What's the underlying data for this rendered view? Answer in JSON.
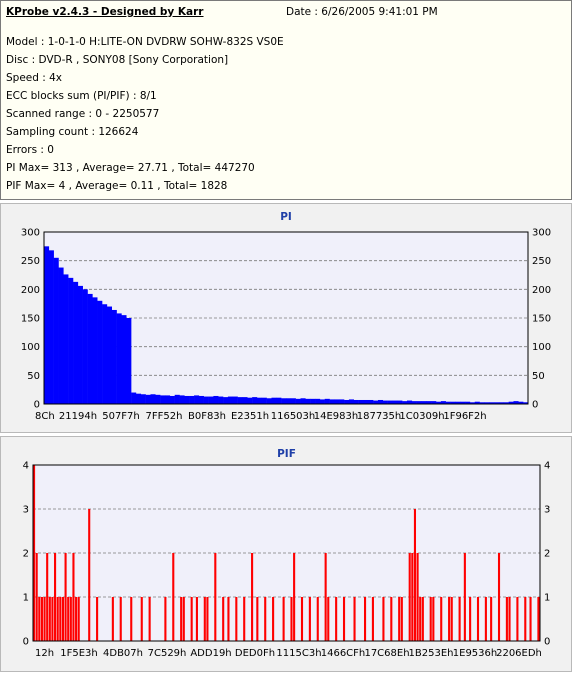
{
  "header": {
    "app_title": "KProbe v2.4.3 - Designed by Karr",
    "date": "Date : 6/26/2005 9:41:01 PM"
  },
  "info_lines": [
    "Model : 1-0-1-0 H:LITE-ON DVDRW SOHW-832S  VS0E",
    "Disc : DVD-R , SONY08 [Sony Corporation]",
    "Speed : 4x",
    "ECC blocks sum (PI/PIF) : 8/1",
    "Scanned range : 0 - 2250577",
    "Sampling count : 126624",
    "Errors : 0",
    "PI Max= 313 , Average= 27.71 , Total= 447270",
    "PIF Max= 4 , Average= 0.11 , Total= 1828"
  ],
  "colors": {
    "pi_series": "#0000ff",
    "pif_series": "#ff0000",
    "plot_background": "#f0f0fa",
    "grid": "#7a7a7a"
  },
  "chart_data": [
    {
      "type": "area",
      "title": "PI",
      "ylim": [
        0,
        300
      ],
      "y_ticks": [
        "0",
        "50",
        "100",
        "150",
        "200",
        "250",
        "300"
      ],
      "x_tick_labels": [
        "8Ch",
        "21194h",
        "507F7h",
        "7FF52h",
        "B0F83h",
        "E2351h",
        "116503h",
        "14E983h",
        "187735h",
        "1C0309h",
        "1F96F2h"
      ],
      "grid": "dashed horizontal",
      "series": [
        {
          "values": [
            275,
            268,
            255,
            238,
            226,
            220,
            213,
            206,
            200,
            192,
            186,
            180,
            174,
            170,
            164,
            158,
            155,
            150,
            20,
            18,
            17,
            16,
            17,
            16,
            15,
            15,
            14,
            16,
            15,
            14,
            14,
            15,
            14,
            13,
            13,
            14,
            13,
            12,
            13,
            13,
            12,
            12,
            11,
            12,
            11,
            11,
            10,
            11,
            11,
            10,
            10,
            10,
            9,
            10,
            9,
            9,
            9,
            8,
            9,
            8,
            8,
            8,
            7,
            8,
            7,
            7,
            7,
            7,
            6,
            7,
            6,
            6,
            6,
            6,
            5,
            6,
            5,
            5,
            5,
            5,
            5,
            4,
            5,
            4,
            4,
            4,
            4,
            4,
            3,
            4,
            3,
            3,
            3,
            3,
            3,
            3,
            4,
            5,
            4,
            3
          ]
        }
      ]
    },
    {
      "type": "bar",
      "title": "PIF",
      "ylim": [
        0,
        4
      ],
      "y_ticks": [
        "0",
        "1",
        "2",
        "3",
        "4"
      ],
      "x_tick_labels": [
        "12h",
        "1F5E3h",
        "4DB07h",
        "7C529h",
        "ADD19h",
        "DED0Fh",
        "1115C3h",
        "1466CFh",
        "17C68Eh",
        "1B253Eh",
        "1E9536h",
        "2206EDh"
      ],
      "grid": "dashed horizontal",
      "series": [
        {
          "values": [
            4,
            2,
            1,
            1,
            1,
            2,
            1,
            1,
            2,
            1,
            1,
            1,
            2,
            1,
            1,
            2,
            1,
            1,
            0,
            0,
            0,
            3,
            0,
            0,
            1,
            0,
            0,
            0,
            0,
            0,
            1,
            0,
            0,
            1,
            0,
            0,
            0,
            1,
            0,
            0,
            0,
            1,
            0,
            0,
            1,
            0,
            0,
            0,
            0,
            0,
            1,
            0,
            0,
            2,
            0,
            0,
            1,
            1,
            0,
            0,
            1,
            0,
            1,
            0,
            0,
            1,
            1,
            0,
            0,
            2,
            0,
            0,
            1,
            0,
            1,
            0,
            0,
            1,
            0,
            0,
            1,
            0,
            0,
            2,
            0,
            1,
            0,
            0,
            1,
            0,
            0,
            1,
            0,
            0,
            0,
            1,
            0,
            0,
            1,
            2,
            0,
            0,
            1,
            0,
            0,
            1,
            0,
            0,
            1,
            0,
            0,
            2,
            1,
            0,
            0,
            1,
            0,
            0,
            1,
            0,
            0,
            0,
            1,
            0,
            0,
            0,
            1,
            0,
            0,
            1,
            0,
            0,
            0,
            1,
            0,
            0,
            1,
            0,
            0,
            1,
            1,
            0,
            0,
            2,
            2,
            3,
            2,
            1,
            1,
            0,
            0,
            1,
            1,
            0,
            0,
            1,
            0,
            0,
            1,
            1,
            0,
            0,
            1,
            0,
            2,
            0,
            1,
            0,
            0,
            1,
            0,
            0,
            1,
            0,
            1,
            0,
            0,
            2,
            0,
            0,
            1,
            1,
            0,
            0,
            1,
            0,
            0,
            1,
            0,
            1,
            0,
            0,
            1
          ]
        }
      ]
    }
  ]
}
